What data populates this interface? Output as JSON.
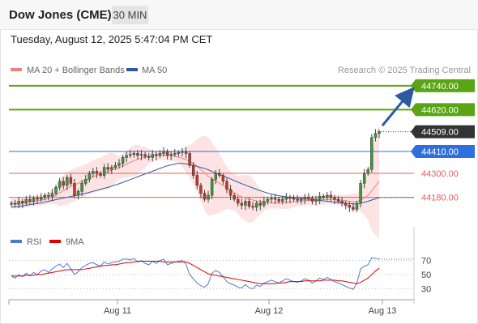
{
  "header": {
    "title": "Dow Jones (CME)",
    "timeframe": "30 MIN"
  },
  "datetime": "Tuesday, August 12, 2025 5:47:04 PM CET",
  "legend": [
    {
      "label": "MA 20 + Bollinger Bands",
      "color": "#f08080"
    },
    {
      "label": "MA 50",
      "color": "#2b5aa3"
    }
  ],
  "copyright": "Research © 2025 Trading Central",
  "rsi_legend": [
    {
      "label": "RSI",
      "color": "#4a7bd1"
    },
    {
      "label": "9MA",
      "color": "#e00000"
    }
  ],
  "chart_data": [
    {
      "type": "candlestick",
      "ylim": [
        44040,
        44780
      ],
      "x_ticks": [
        "Aug 11",
        "Aug 12",
        "Aug 13"
      ],
      "levels": [
        {
          "value": "44740.00",
          "color": "#5aa516",
          "kind": "resistance"
        },
        {
          "value": "44620.00",
          "color": "#5aa516",
          "kind": "resistance"
        },
        {
          "value": "44509.00",
          "color": "#333333",
          "kind": "last"
        },
        {
          "value": "44410.00",
          "color": "#2f6fdb",
          "kind": "pivot"
        },
        {
          "value": "44300.00",
          "color": "#e06060",
          "kind": "support"
        },
        {
          "value": "44180.00",
          "color": "#e06060",
          "kind": "support"
        }
      ],
      "close": [
        44150,
        44145,
        44160,
        44150,
        44170,
        44160,
        44175,
        44170,
        44180,
        44190,
        44185,
        44200,
        44230,
        44260,
        44240,
        44280,
        44250,
        44190,
        44210,
        44250,
        44270,
        44300,
        44310,
        44300,
        44290,
        44330,
        44320,
        44330,
        44340,
        44350,
        44380,
        44390,
        44395,
        44400,
        44390,
        44395,
        44385,
        44380,
        44395,
        44390,
        44400,
        44410,
        44390,
        44395,
        44400,
        44405,
        44410,
        44400,
        44340,
        44290,
        44240,
        44200,
        44170,
        44190,
        44270,
        44300,
        44290,
        44260,
        44220,
        44190,
        44170,
        44150,
        44140,
        44160,
        44135,
        44130,
        44150,
        44140,
        44160,
        44170,
        44175,
        44170,
        44160,
        44170,
        44180,
        44175,
        44170,
        44165,
        44170,
        44180,
        44175,
        44160,
        44170,
        44185,
        44180,
        44190,
        44180,
        44170,
        44160,
        44150,
        44140,
        44130,
        44120,
        44150,
        44250,
        44300,
        44320,
        44480,
        44500,
        44509
      ],
      "ma20": [
        44150,
        44148,
        44150,
        44152,
        44155,
        44158,
        44160,
        44162,
        44165,
        44170,
        44175,
        44182,
        44192,
        44203,
        44213,
        44225,
        44235,
        44242,
        44250,
        44258,
        44266,
        44275,
        44283,
        44291,
        44297,
        44304,
        44310,
        44316,
        44322,
        44329,
        44337,
        44346,
        44355,
        44363,
        44370,
        44376,
        44381,
        44385,
        44388,
        44390,
        44391,
        44392,
        44391,
        44389,
        44386,
        44382,
        44376,
        44369,
        44360,
        44349,
        44336,
        44320,
        44302,
        44285,
        44273,
        44262,
        44251,
        44240,
        44227,
        44215,
        44203,
        44192,
        44183,
        44177,
        44171,
        44166,
        44162,
        44158,
        44155,
        44153,
        44152,
        44152,
        44152,
        44153,
        44154,
        44156,
        44158,
        44160,
        44161,
        44163,
        44164,
        44165,
        44166,
        44167,
        44168,
        44169,
        44169,
        44168,
        44167,
        44165,
        44163,
        44160,
        44157,
        44158,
        44166,
        44177,
        44190,
        44212,
        44236,
        44260
      ],
      "ma50": [
        44130,
        44132,
        44134,
        44137,
        44140,
        44143,
        44146,
        44149,
        44152,
        44156,
        44160,
        44164,
        44168,
        44172,
        44176,
        44180,
        44184,
        44188,
        44192,
        44196,
        44200,
        44205,
        44210,
        44215,
        44220,
        44225,
        44230,
        44236,
        44242,
        44248,
        44255,
        44262,
        44269,
        44276,
        44283,
        44290,
        44297,
        44304,
        44311,
        44318,
        44325,
        44332,
        44338,
        44343,
        44347,
        44350,
        44350,
        44348,
        44344,
        44340,
        44335,
        44330,
        44325,
        44318,
        44310,
        44302,
        44295,
        44288,
        44280,
        44272,
        44264,
        44256,
        44248,
        44241,
        44234,
        44227,
        44220,
        44213,
        44207,
        44201,
        44196,
        44192,
        44188,
        44185,
        44182,
        44180,
        44178,
        44176,
        44174,
        44172,
        44170,
        44168,
        44166,
        44164,
        44162,
        44160,
        44158,
        44156,
        44154,
        44152,
        44150,
        44148,
        44146,
        44146,
        44150,
        44155,
        44160,
        44166,
        44172,
        44178
      ]
    },
    {
      "type": "line",
      "title": "RSI",
      "ylim": [
        20,
        80
      ],
      "y_ticks": [
        70,
        50,
        30
      ],
      "series": [
        {
          "name": "RSI",
          "values": [
            48,
            45,
            50,
            47,
            52,
            48,
            53,
            50,
            55,
            57,
            53,
            58,
            62,
            65,
            60,
            66,
            58,
            50,
            54,
            60,
            63,
            66,
            67,
            64,
            62,
            68,
            65,
            67,
            68,
            69,
            72,
            72,
            71,
            73,
            68,
            70,
            66,
            64,
            69,
            66,
            70,
            72,
            64,
            66,
            68,
            69,
            70,
            65,
            50,
            44,
            38,
            34,
            32,
            37,
            52,
            56,
            53,
            47,
            40,
            37,
            35,
            32,
            31,
            36,
            31,
            30,
            35,
            33,
            38,
            40,
            42,
            40,
            38,
            41,
            44,
            42,
            40,
            39,
            41,
            44,
            42,
            38,
            41,
            45,
            43,
            46,
            43,
            40,
            38,
            36,
            33,
            31,
            29,
            38,
            58,
            62,
            64,
            74,
            73,
            72
          ]
        },
        {
          "name": "9MA",
          "values": [
            48,
            48,
            48,
            48,
            49,
            49,
            49,
            50,
            50,
            51,
            52,
            53,
            54,
            55,
            56,
            57,
            57,
            57,
            57,
            57,
            58,
            59,
            60,
            61,
            62,
            63,
            63,
            64,
            64,
            65,
            66,
            67,
            67,
            68,
            69,
            69,
            69,
            69,
            69,
            69,
            69,
            68,
            68,
            68,
            68,
            68,
            68,
            68,
            66,
            63,
            60,
            57,
            54,
            51,
            50,
            49,
            48,
            47,
            46,
            45,
            44,
            43,
            42,
            41,
            40,
            39,
            38,
            37,
            37,
            37,
            37,
            37,
            38,
            38,
            39,
            40,
            40,
            40,
            40,
            41,
            41,
            41,
            41,
            41,
            42,
            42,
            42,
            42,
            41,
            41,
            40,
            39,
            38,
            37,
            39,
            42,
            45,
            50,
            55,
            59
          ]
        }
      ]
    }
  ]
}
